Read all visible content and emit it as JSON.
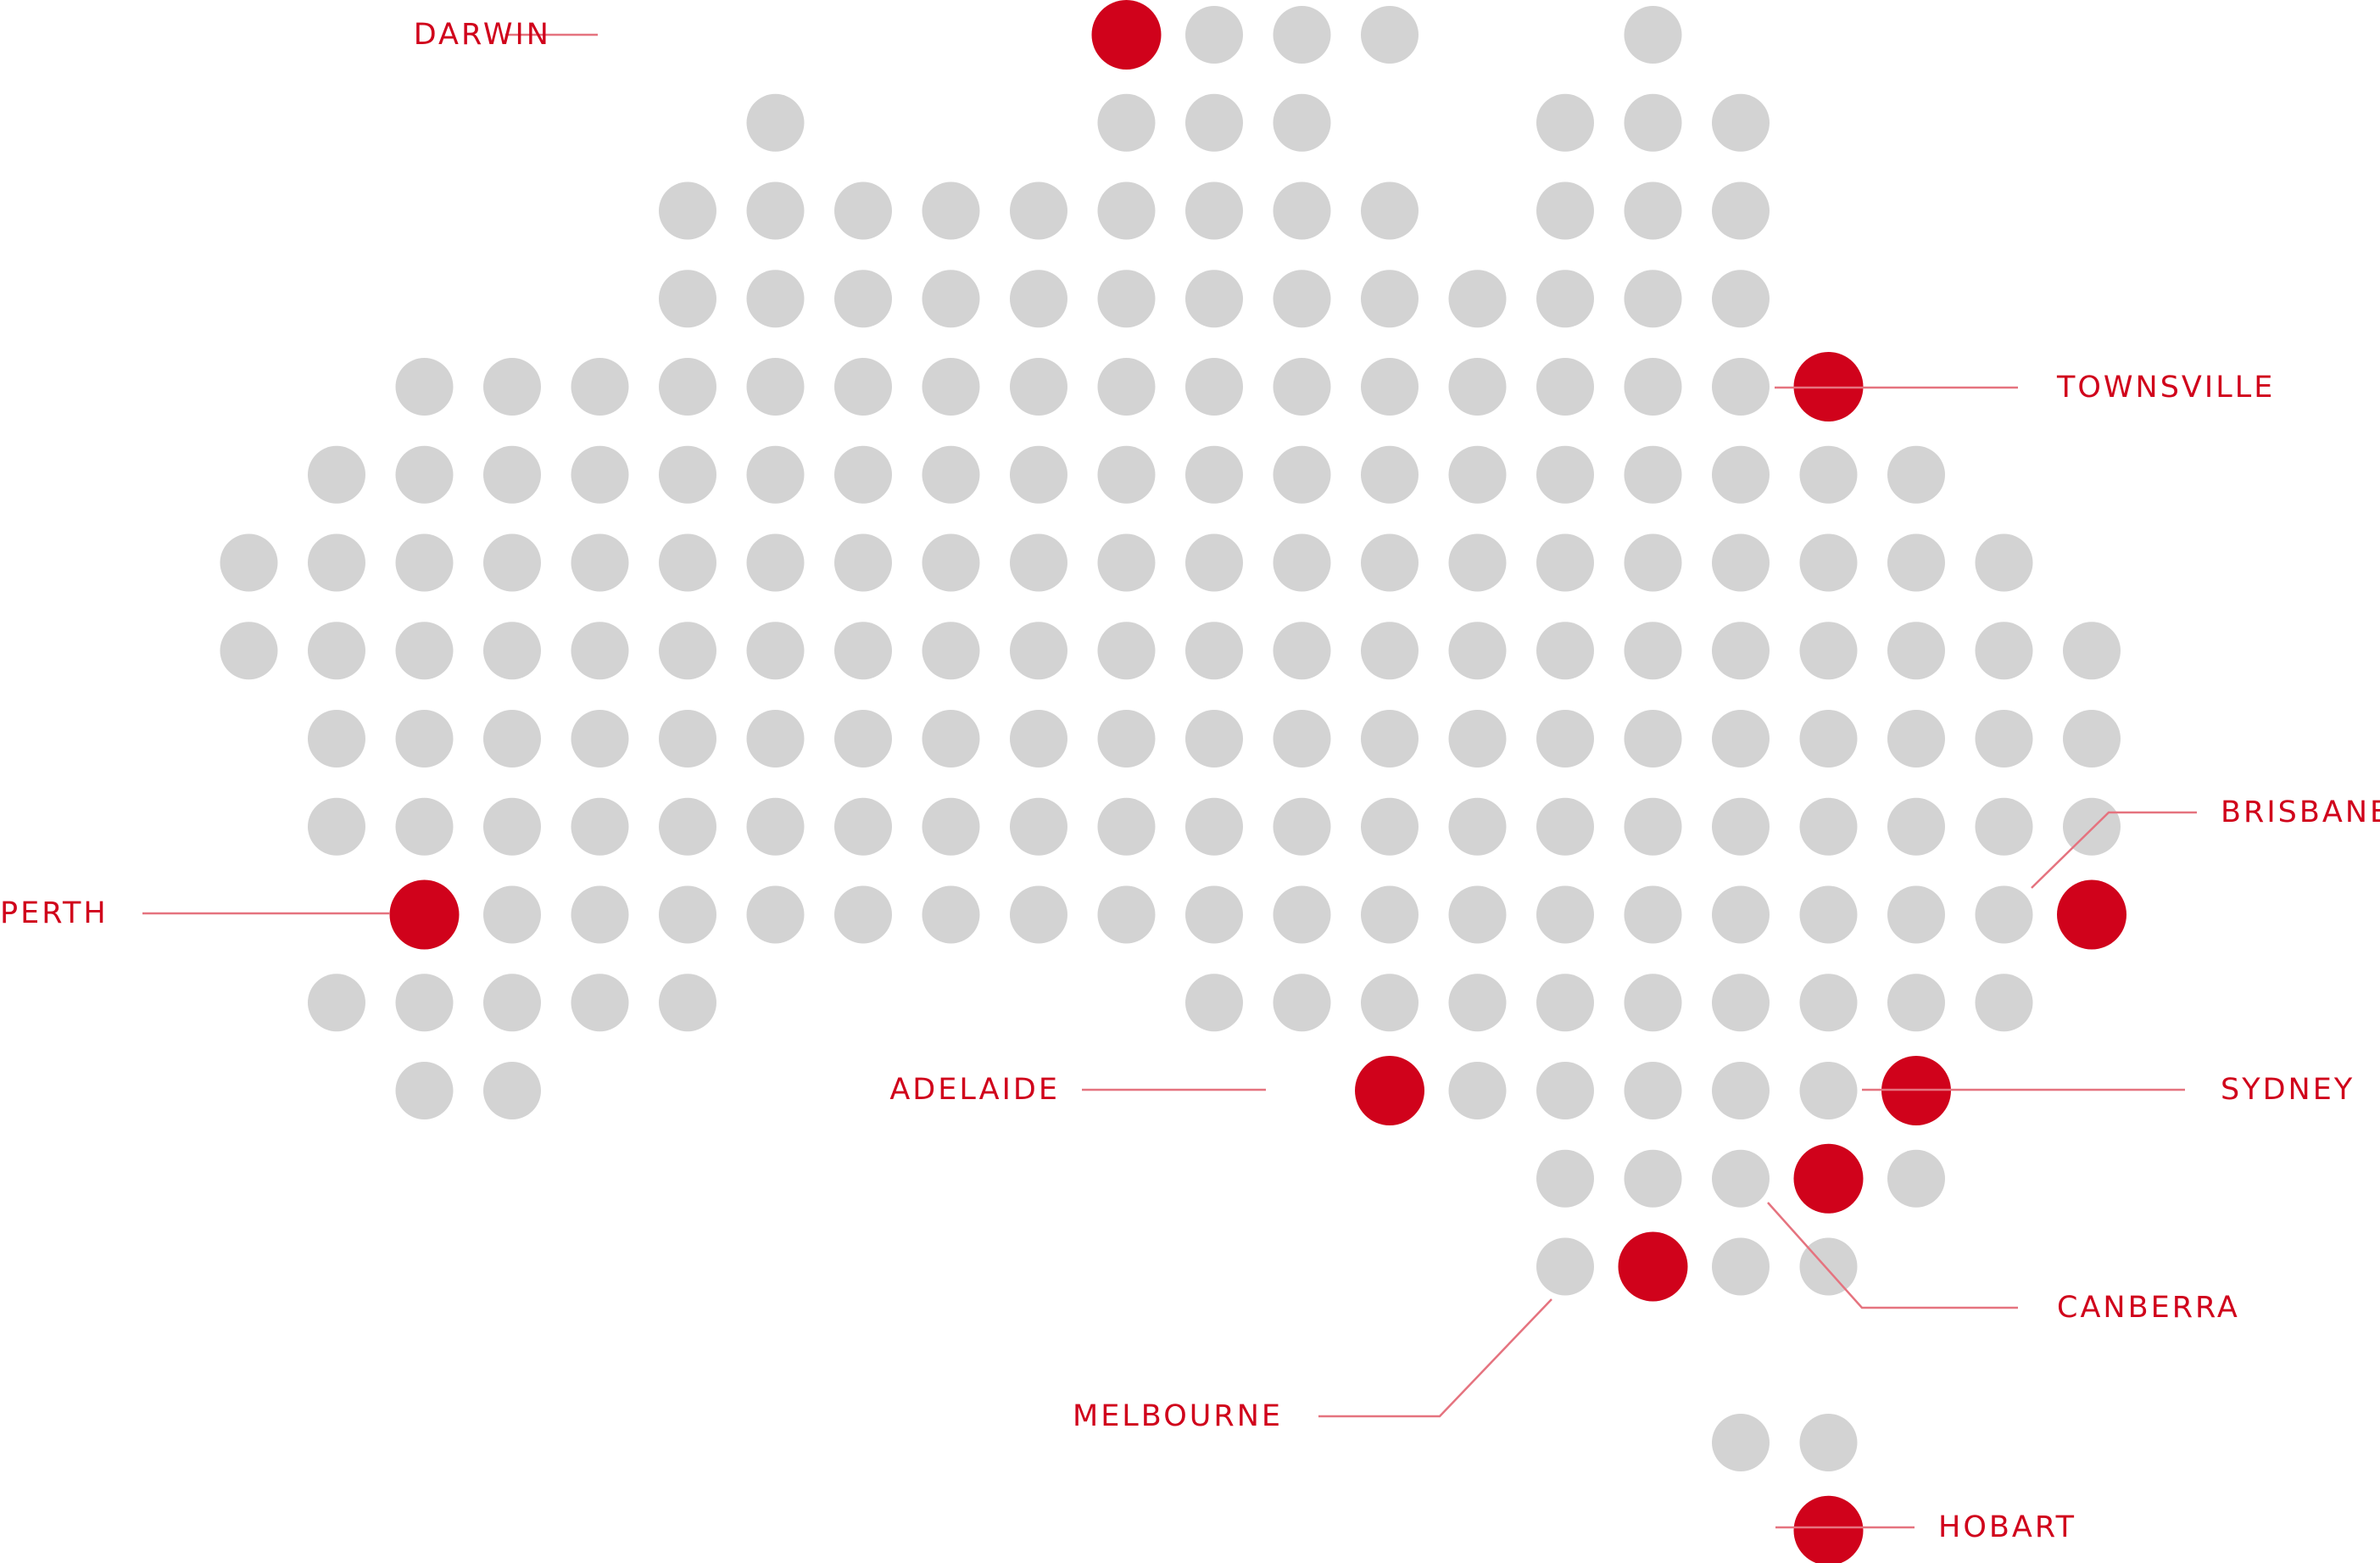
{
  "colors": {
    "background": "#ffffff",
    "dot_default": "#d3d3d3",
    "dot_city": "#d0021b",
    "leader_line": "#e5737f",
    "label": "#d0021b"
  },
  "dot_grid": {
    "rows": [
      [
        9,
        10,
        11,
        12,
        15
      ],
      [
        5,
        9,
        10,
        11,
        14,
        15,
        16
      ],
      [
        4,
        5,
        6,
        7,
        8,
        9,
        10,
        11,
        12,
        14,
        15,
        16
      ],
      [
        4,
        5,
        6,
        7,
        8,
        9,
        10,
        11,
        12,
        13,
        14,
        15,
        16
      ],
      [
        1,
        2,
        3,
        4,
        5,
        6,
        7,
        8,
        9,
        10,
        11,
        12,
        13,
        14,
        15,
        16,
        17
      ],
      [
        0,
        1,
        2,
        3,
        4,
        5,
        6,
        7,
        8,
        9,
        10,
        11,
        12,
        13,
        14,
        15,
        16,
        17,
        18
      ],
      [
        -1,
        0,
        1,
        2,
        3,
        4,
        5,
        6,
        7,
        8,
        9,
        10,
        11,
        12,
        13,
        14,
        15,
        16,
        17,
        18,
        19
      ],
      [
        -1,
        0,
        1,
        2,
        3,
        4,
        5,
        6,
        7,
        8,
        9,
        10,
        11,
        12,
        13,
        14,
        15,
        16,
        17,
        18,
        19,
        20
      ],
      [
        0,
        1,
        2,
        3,
        4,
        5,
        6,
        7,
        8,
        9,
        10,
        11,
        12,
        13,
        14,
        15,
        16,
        17,
        18,
        19,
        20
      ],
      [
        0,
        1,
        2,
        3,
        4,
        5,
        6,
        7,
        8,
        9,
        10,
        11,
        12,
        13,
        14,
        15,
        16,
        17,
        18,
        19,
        20
      ],
      [
        1,
        2,
        3,
        4,
        5,
        6,
        7,
        8,
        9,
        10,
        11,
        12,
        13,
        14,
        15,
        16,
        17,
        18,
        19,
        20
      ],
      [
        0,
        1,
        2,
        3,
        4,
        10,
        11,
        12,
        13,
        14,
        15,
        16,
        17,
        18,
        19
      ],
      [
        1,
        2,
        12,
        13,
        14,
        15,
        16,
        17,
        18
      ],
      [
        14,
        15,
        16,
        17,
        18
      ],
      [
        14,
        15,
        16,
        17
      ],
      [],
      [
        16,
        17
      ],
      [
        17
      ]
    ]
  },
  "cities": [
    {
      "name": "DARWIN",
      "row": 0,
      "col": 9
    },
    {
      "name": "TOWNSVILLE",
      "row": 4,
      "col": 17
    },
    {
      "name": "BRISBANE",
      "row": 10,
      "col": 20
    },
    {
      "name": "PERTH",
      "row": 10,
      "col": 1
    },
    {
      "name": "ADELAIDE",
      "row": 12,
      "col": 12
    },
    {
      "name": "SYDNEY",
      "row": 12,
      "col": 18
    },
    {
      "name": "CANBERRA",
      "row": 13,
      "col": 17
    },
    {
      "name": "MELBOURNE",
      "row": 14,
      "col": 15
    },
    {
      "name": "HOBART",
      "row": 17,
      "col": 17
    }
  ]
}
